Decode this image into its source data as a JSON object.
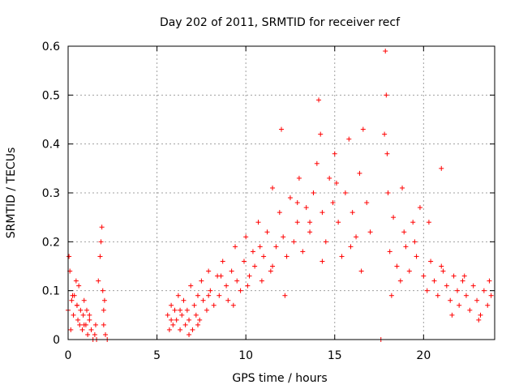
{
  "chart_data": {
    "type": "scatter",
    "title": "Day 202 of 2011, SRMTID for receiver recf",
    "xlabel": "GPS time / hours",
    "ylabel": "SRMTID / TECUs",
    "xlim": [
      0,
      24
    ],
    "ylim": [
      0,
      0.6
    ],
    "xticks": [
      0,
      5,
      10,
      15,
      20
    ],
    "xtick_labels": [
      "0",
      "5",
      "10",
      "15",
      "20"
    ],
    "yticks": [
      0,
      0.1,
      0.2,
      0.3,
      0.4,
      0.5,
      0.6
    ],
    "ytick_labels": [
      "0",
      "0.1",
      "0.2",
      "0.3",
      "0.4",
      "0.5",
      "0.6"
    ],
    "grid": true,
    "marker": "plus",
    "color": "#ff0000",
    "series": [
      {
        "name": "SRMTID",
        "x": [
          0.0,
          0.05,
          0.1,
          0.15,
          0.2,
          0.3,
          0.35,
          0.45,
          0.5,
          0.55,
          0.6,
          0.65,
          0.7,
          0.8,
          0.85,
          0.9,
          1.0,
          1.05,
          1.1,
          1.2,
          1.3,
          1.4,
          1.5,
          1.55,
          1.7,
          1.8,
          1.85,
          1.9,
          1.95,
          2.0,
          2.0,
          2.05,
          2.1,
          2.2,
          5.6,
          5.7,
          5.8,
          5.9,
          6.0,
          6.1,
          6.2,
          6.3,
          6.4,
          6.5,
          6.6,
          6.7,
          6.8,
          6.9,
          7.0,
          7.1,
          7.2,
          7.3,
          7.4,
          7.5,
          7.6,
          7.8,
          7.9,
          8.0,
          8.2,
          8.4,
          8.5,
          8.7,
          8.9,
          9.0,
          9.2,
          9.4,
          9.5,
          9.7,
          9.9,
          10.0,
          10.2,
          10.4,
          10.5,
          10.7,
          10.9,
          11.0,
          11.2,
          11.4,
          11.5,
          11.7,
          11.9,
          12.0,
          12.1,
          12.3,
          12.5,
          12.7,
          12.9,
          13.0,
          13.2,
          13.4,
          13.6,
          13.8,
          14.0,
          14.1,
          14.2,
          14.3,
          14.5,
          14.7,
          14.9,
          15.0,
          15.2,
          15.4,
          15.6,
          15.8,
          16.0,
          16.2,
          16.4,
          16.6,
          16.8,
          17.0,
          17.8,
          17.85,
          17.9,
          17.95,
          18.0,
          18.1,
          18.3,
          18.5,
          18.7,
          18.9,
          19.0,
          19.2,
          19.4,
          19.6,
          19.8,
          20.0,
          20.2,
          20.4,
          20.6,
          20.8,
          21.0,
          21.1,
          21.3,
          21.5,
          21.7,
          21.9,
          22.0,
          22.2,
          22.4,
          22.6,
          22.8,
          23.0,
          23.2,
          23.4,
          23.6,
          23.8,
          0.25,
          0.5,
          0.9,
          1.2,
          1.6,
          5.8,
          6.3,
          6.8,
          7.3,
          7.9,
          8.6,
          9.3,
          10.1,
          10.8,
          11.5,
          12.2,
          12.9,
          13.6,
          14.3,
          15.1,
          15.9,
          16.5,
          17.6,
          18.2,
          18.8,
          19.5,
          20.3,
          21.0,
          21.6,
          22.3,
          23.1,
          23.7
        ],
        "y": [
          0.06,
          0.17,
          0.14,
          0.02,
          0.08,
          0.05,
          0.09,
          0.12,
          0.07,
          0.04,
          0.11,
          0.03,
          0.06,
          0.02,
          0.05,
          0.08,
          0.03,
          0.06,
          0.01,
          0.04,
          0.02,
          0.0,
          0.01,
          0.03,
          0.12,
          0.17,
          0.2,
          0.23,
          0.1,
          0.06,
          0.03,
          0.08,
          0.01,
          0.0,
          0.05,
          0.02,
          0.07,
          0.03,
          0.06,
          0.04,
          0.09,
          0.02,
          0.05,
          0.08,
          0.03,
          0.06,
          0.04,
          0.11,
          0.02,
          0.07,
          0.05,
          0.09,
          0.04,
          0.12,
          0.08,
          0.06,
          0.14,
          0.1,
          0.07,
          0.13,
          0.09,
          0.16,
          0.11,
          0.08,
          0.14,
          0.19,
          0.12,
          0.1,
          0.16,
          0.21,
          0.13,
          0.18,
          0.15,
          0.24,
          0.12,
          0.17,
          0.22,
          0.14,
          0.31,
          0.19,
          0.26,
          0.43,
          0.21,
          0.17,
          0.29,
          0.2,
          0.24,
          0.33,
          0.18,
          0.27,
          0.22,
          0.3,
          0.36,
          0.49,
          0.42,
          0.26,
          0.2,
          0.33,
          0.28,
          0.38,
          0.24,
          0.17,
          0.3,
          0.41,
          0.26,
          0.21,
          0.34,
          0.43,
          0.28,
          0.22,
          0.42,
          0.59,
          0.5,
          0.38,
          0.3,
          0.18,
          0.25,
          0.15,
          0.12,
          0.22,
          0.19,
          0.14,
          0.24,
          0.17,
          0.27,
          0.13,
          0.1,
          0.16,
          0.12,
          0.09,
          0.35,
          0.14,
          0.11,
          0.08,
          0.13,
          0.1,
          0.07,
          0.12,
          0.09,
          0.06,
          0.11,
          0.08,
          0.05,
          0.1,
          0.07,
          0.09,
          0.09,
          0.07,
          0.03,
          0.05,
          0.0,
          0.04,
          0.06,
          0.01,
          0.03,
          0.09,
          0.13,
          0.07,
          0.11,
          0.19,
          0.15,
          0.09,
          0.28,
          0.24,
          0.16,
          0.32,
          0.19,
          0.14,
          0.0,
          0.09,
          0.31,
          0.2,
          0.24,
          0.15,
          0.05,
          0.13,
          0.04,
          0.12
        ]
      }
    ]
  }
}
